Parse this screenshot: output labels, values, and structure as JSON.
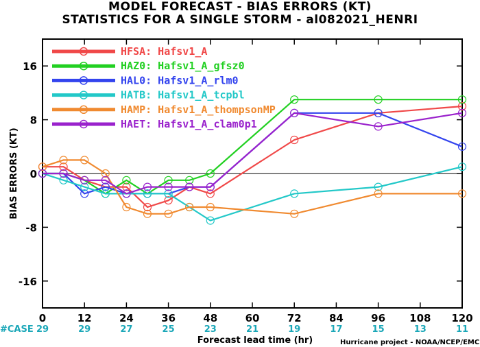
{
  "title_line1": "MODEL FORECAST - BIAS ERRORS (KT)",
  "title_line2": "STATISTICS FOR A SINGLE STORM - al082021_HENRI",
  "credit": "Hurricane project - NOAA/NCEP/EMC",
  "case_label": "#CASE",
  "chart_data": {
    "type": "line",
    "xlabel": "Forecast lead time (hr)",
    "ylabel": "BIAS ERRORS (KT)",
    "xlim": [
      0,
      120
    ],
    "ylim": [
      -20,
      20
    ],
    "x_ticks": [
      0,
      12,
      24,
      36,
      48,
      60,
      72,
      84,
      96,
      108,
      120
    ],
    "y_ticks": [
      16,
      8,
      0,
      -8,
      -16
    ],
    "y_tick_labels": [
      "16",
      "8",
      "0",
      "-8",
      "-16"
    ],
    "case_counts": [
      29,
      29,
      27,
      25,
      23,
      21,
      19,
      17,
      15,
      13,
      11
    ],
    "zero_line": true,
    "grid": false,
    "legend_position": "top-left",
    "series": [
      {
        "name": "HFSA:  Hafsv1_A",
        "color": "#f04848",
        "x": [
          0,
          6,
          12,
          18,
          24,
          30,
          36,
          42,
          48,
          72,
          96,
          120
        ],
        "y": [
          1,
          1,
          -1,
          -2,
          -2,
          -5,
          -4,
          -2,
          -3,
          5,
          9,
          10
        ]
      },
      {
        "name": "HAZ0:  Hafsv1_A_gfsz0",
        "color": "#22d022",
        "x": [
          0,
          6,
          12,
          18,
          24,
          30,
          36,
          42,
          48,
          72,
          96,
          120
        ],
        "y": [
          0,
          0,
          -1,
          -3,
          -1,
          -3,
          -1,
          -1,
          0,
          11,
          11,
          11
        ]
      },
      {
        "name": "HAL0:  Hafsv1_A_rlm0",
        "color": "#3344ee",
        "x": [
          0,
          6,
          12,
          18,
          24,
          30,
          36,
          42,
          48,
          72,
          96,
          120
        ],
        "y": [
          0,
          0,
          -3,
          -2,
          -3,
          -3,
          -3,
          -2,
          -2,
          9,
          9,
          4
        ]
      },
      {
        "name": "HATB:  Hafsv1_A_tcpbl",
        "color": "#22c8c8",
        "x": [
          0,
          6,
          12,
          18,
          24,
          30,
          36,
          42,
          48,
          72,
          96,
          120
        ],
        "y": [
          0,
          -1,
          -2,
          -3,
          -3,
          -3,
          -3,
          -5,
          -7,
          -3,
          -2,
          1
        ]
      },
      {
        "name": "HAMP:  Hafsv1_A_thompsonMP",
        "color": "#f08a30",
        "x": [
          0,
          6,
          12,
          18,
          24,
          30,
          36,
          42,
          48,
          72,
          96,
          120
        ],
        "y": [
          1,
          2,
          2,
          0,
          -5,
          -6,
          -6,
          -5,
          -5,
          -6,
          -3,
          -3
        ]
      },
      {
        "name": "HAET:  Hafsv1_A_clam0p1",
        "color": "#9a22cc",
        "x": [
          0,
          6,
          12,
          18,
          24,
          30,
          36,
          42,
          48,
          72,
          96,
          120
        ],
        "y": [
          0,
          0,
          -1,
          -1,
          -3,
          -2,
          -2,
          -2,
          -2,
          9,
          7,
          9
        ]
      }
    ]
  }
}
